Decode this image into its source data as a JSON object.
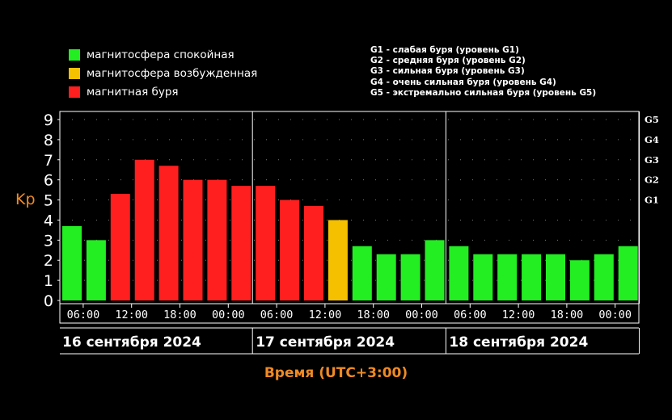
{
  "legend": {
    "items": [
      {
        "label": "магнитосфера спокойная",
        "color": "#22ee22"
      },
      {
        "label": "магнитосфера возбужденная",
        "color": "#f5c000"
      },
      {
        "label": "магнитная буря",
        "color": "#ff1f1f"
      }
    ],
    "storm_levels": [
      "G1 - слабая буря (уровень G1)",
      "G2 - средняя буря (уровень G2)",
      "G3 - сильная буря (уровень G3)",
      "G4 - очень сильная буря (уровень G4)",
      "G5 - экстремально сильная буря (уровень G5)"
    ]
  },
  "colors": {
    "quiet": "#22ee22",
    "active": "#f5c000",
    "storm": "#ff1f1f",
    "axis_title": "#f08a24",
    "background": "#000000"
  },
  "chart_data": {
    "type": "bar",
    "ylabel": "Kp",
    "xlabel": "Время (UTC+3:00)",
    "ylim": [
      0,
      9
    ],
    "yticks": [
      0,
      1,
      2,
      3,
      4,
      5,
      6,
      7,
      8,
      9
    ],
    "grid": "dotted",
    "right_axis_labels": [
      {
        "label": "G5",
        "kp": 9
      },
      {
        "label": "G4",
        "kp": 8
      },
      {
        "label": "G3",
        "kp": 7
      },
      {
        "label": "G2",
        "kp": 6
      },
      {
        "label": "G1",
        "kp": 5
      }
    ],
    "x_tick_labels": [
      "06:00",
      "12:00",
      "18:00",
      "00:00",
      "06:00",
      "12:00",
      "18:00",
      "00:00",
      "06:00",
      "12:00",
      "18:00",
      "00:00"
    ],
    "dates": [
      "16 сентября 2024",
      "17 сентября 2024",
      "18 сентября 2024"
    ],
    "bars": [
      {
        "kp": 3.7,
        "level": "quiet"
      },
      {
        "kp": 3.0,
        "level": "quiet"
      },
      {
        "kp": 5.3,
        "level": "storm"
      },
      {
        "kp": 7.0,
        "level": "storm"
      },
      {
        "kp": 6.7,
        "level": "storm"
      },
      {
        "kp": 6.0,
        "level": "storm"
      },
      {
        "kp": 6.0,
        "level": "storm"
      },
      {
        "kp": 5.7,
        "level": "storm"
      },
      {
        "kp": 5.7,
        "level": "storm"
      },
      {
        "kp": 5.0,
        "level": "storm"
      },
      {
        "kp": 4.7,
        "level": "storm"
      },
      {
        "kp": 4.0,
        "level": "active"
      },
      {
        "kp": 2.7,
        "level": "quiet"
      },
      {
        "kp": 2.3,
        "level": "quiet"
      },
      {
        "kp": 2.3,
        "level": "quiet"
      },
      {
        "kp": 3.0,
        "level": "quiet"
      },
      {
        "kp": 2.7,
        "level": "quiet"
      },
      {
        "kp": 2.3,
        "level": "quiet"
      },
      {
        "kp": 2.3,
        "level": "quiet"
      },
      {
        "kp": 2.3,
        "level": "quiet"
      },
      {
        "kp": 2.3,
        "level": "quiet"
      },
      {
        "kp": 2.0,
        "level": "quiet"
      },
      {
        "kp": 2.3,
        "level": "quiet"
      },
      {
        "kp": 2.7,
        "level": "quiet"
      }
    ]
  }
}
